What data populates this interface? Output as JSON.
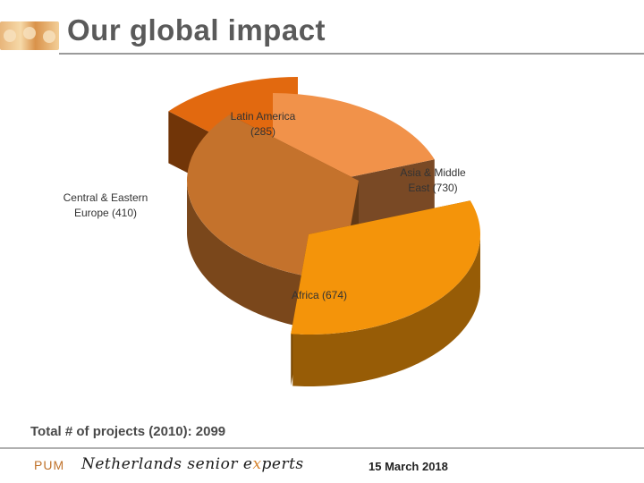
{
  "header": {
    "title": "Our global impact"
  },
  "chart_data": {
    "type": "pie",
    "style": "3d-exploded",
    "categories": [
      "Latin America",
      "Asia & Middle East",
      "Africa",
      "Central & Eastern Europe"
    ],
    "values": [
      285,
      730,
      674,
      410
    ],
    "labels": [
      [
        "Latin America",
        "(285)"
      ],
      [
        "Asia & Middle",
        "East (730)"
      ],
      [
        "Africa (674)"
      ],
      [
        "Central & Eastern",
        "Europe (410)"
      ]
    ],
    "colors": [
      "#e2690f",
      "#c4722c",
      "#f4940a",
      "#f1924a"
    ],
    "title": "",
    "legend": "none"
  },
  "total": {
    "text": "Total # of projects (2010): 2099"
  },
  "footer": {
    "org": "PUM",
    "tagline_prefix": "Netherlands senior e",
    "tagline_mark": "x",
    "tagline_suffix": "perts",
    "date": "15 March 2018"
  }
}
